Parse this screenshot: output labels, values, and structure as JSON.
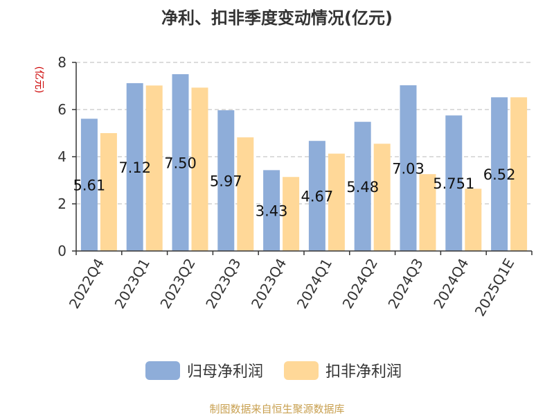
{
  "chart_data": {
    "type": "bar",
    "title": "净利、扣非季度变动情况(亿元)",
    "ylabel": "(亿元)",
    "xlabel": "",
    "ylim": [
      0,
      8
    ],
    "yticks": [
      "0",
      "2",
      "4",
      "6",
      "8"
    ],
    "grid": true,
    "legend_position": "bottom",
    "categories": [
      "2022Q4",
      "2023Q1",
      "2023Q2",
      "2023Q3",
      "2023Q4",
      "2024Q1",
      "2024Q2",
      "2024Q3",
      "2024Q4",
      "2025Q1E"
    ],
    "series": [
      {
        "name": "归母净利润",
        "color": "#8eadd9",
        "values": [
          5.61,
          7.12,
          7.5,
          5.97,
          3.43,
          4.67,
          5.48,
          7.03,
          5.751,
          6.52
        ],
        "data_labels": [
          "5.61",
          "7.12",
          "7.50",
          "5.97",
          "3.43",
          "4.67",
          "5.48",
          "7.03",
          "5.751",
          "6.52"
        ]
      },
      {
        "name": "扣非净利润",
        "color": "#ffd898",
        "values": [
          5.0,
          7.02,
          6.93,
          4.82,
          3.14,
          4.13,
          4.55,
          3.26,
          2.64,
          6.52
        ]
      }
    ]
  },
  "source": "制图数据来自恒生聚源数据库",
  "colors": {
    "title": "#333333",
    "ylabel": "#cc0000",
    "source": "#c8a050",
    "grid": "#c8c8c8",
    "axis": "#333333"
  }
}
